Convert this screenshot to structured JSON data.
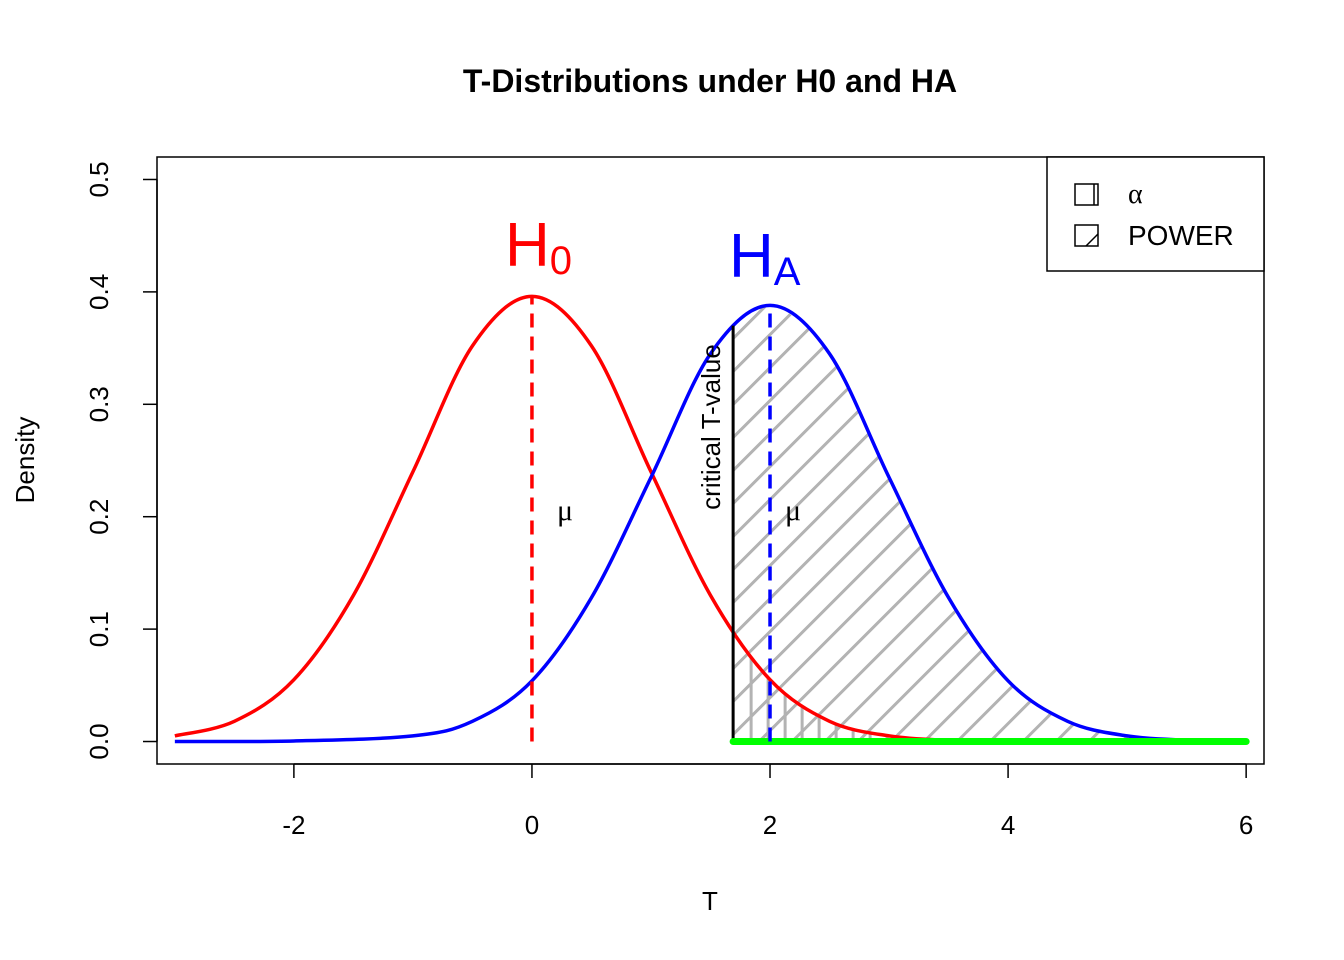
{
  "chart_data": {
    "type": "line",
    "title": "T-Distributions under H0 and HA",
    "xlabel": "T",
    "ylabel": "Density",
    "xlim": [
      -3.15,
      6.15
    ],
    "ylim": [
      -0.02,
      0.52
    ],
    "x_ticks": [
      -2,
      0,
      2,
      4,
      6
    ],
    "y_ticks": [
      0.0,
      0.1,
      0.2,
      0.3,
      0.4,
      0.5
    ],
    "x_tick_labels": [
      "-2",
      "0",
      "2",
      "4",
      "6"
    ],
    "y_tick_labels": [
      "0.0",
      "0.1",
      "0.2",
      "0.3",
      "0.4",
      "0.5"
    ],
    "grid": false,
    "critical_t": 1.69,
    "series": [
      {
        "label_main": "H",
        "label_sub": "0",
        "color": "#ff0000",
        "mean": 0,
        "mean_label": "μ",
        "x": [
          -3.0,
          -2.5,
          -2.0,
          -1.5,
          -1.0,
          -0.5,
          0.0,
          0.5,
          1.0,
          1.5,
          2.0,
          2.5,
          3.0,
          3.5,
          4.0
        ],
        "y": [
          0.005,
          0.018,
          0.055,
          0.13,
          0.24,
          0.352,
          0.396,
          0.352,
          0.24,
          0.13,
          0.055,
          0.018,
          0.005,
          0.001,
          0.0
        ]
      },
      {
        "label_main": "H",
        "label_sub": "A",
        "color": "#0000ff",
        "mean": 2,
        "mean_label": "μ",
        "x": [
          -3.0,
          -2.0,
          -1.0,
          -0.5,
          0.0,
          0.5,
          1.0,
          1.5,
          2.0,
          2.5,
          3.0,
          3.5,
          4.0,
          4.5,
          5.0,
          5.5,
          6.0
        ],
        "y": [
          0.0,
          0.0005,
          0.005,
          0.018,
          0.054,
          0.128,
          0.235,
          0.345,
          0.388,
          0.345,
          0.235,
          0.128,
          0.054,
          0.018,
          0.005,
          0.0012,
          0.0002
        ]
      }
    ],
    "critical_label": "critical T-value",
    "legend": {
      "position": "top-right",
      "items": [
        {
          "label": "α",
          "fill": "alpha-vertical-hatch"
        },
        {
          "label": "POWER",
          "fill": "power-diagonal-hatch"
        }
      ]
    },
    "hatch_color": "#b3b3b3",
    "baseline_color": "#00ff00"
  }
}
